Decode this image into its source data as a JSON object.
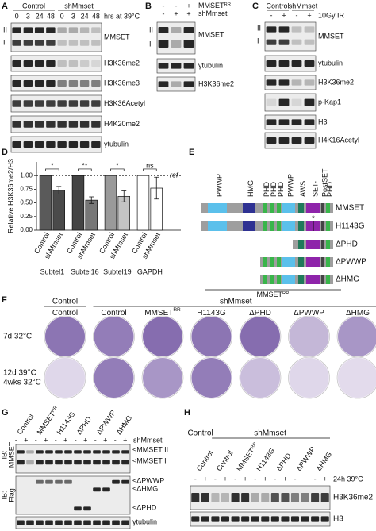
{
  "A": {
    "label": "A",
    "groups": [
      "Control",
      "shMmset"
    ],
    "lanes": [
      "0",
      "3",
      "24",
      "48",
      "0",
      "3",
      "24",
      "48"
    ],
    "condition": "hrs at 39°C",
    "forms": [
      "II",
      "I"
    ],
    "blots": [
      "MMSET",
      "H3K36me2",
      "H3K36me3",
      "H3K36Acetyl",
      "H4K20me2",
      "γtubulin"
    ]
  },
  "B": {
    "label": "B",
    "rows": [
      {
        "name": "MMSET",
        "sup": "RR",
        "signs": [
          "-",
          "-",
          "+"
        ]
      },
      {
        "name": "shMmset",
        "signs": [
          "-",
          "+",
          "+"
        ]
      }
    ],
    "forms": [
      "II",
      "I"
    ],
    "blots": [
      "MMSET",
      "γtubulin",
      "H3K36me2"
    ]
  },
  "C": {
    "label": "C",
    "groups": [
      "Control",
      "shMmset"
    ],
    "condition": "10Gy IR",
    "signs": [
      "-",
      "+",
      "-",
      "+"
    ],
    "forms": [
      "II",
      "I"
    ],
    "blots": [
      "MMSET",
      "γtubulin",
      "H3K36me2",
      "p-Kap1",
      "H3",
      "H4K16Acetyl"
    ]
  },
  "D": {
    "label": "D",
    "ylabel": "Relative H3K36me2/H3",
    "ref": "ref",
    "ref_value": 1,
    "ylim": [
      0,
      1.25
    ],
    "yticks": [
      {
        "value": 0,
        "label": "0.00"
      },
      {
        "value": 0.25,
        "label": "0.25"
      },
      {
        "value": 0.5,
        "label": "0.50"
      },
      {
        "value": 0.75,
        "label": "0.75"
      },
      {
        "value": 1,
        "label": "1.00"
      }
    ],
    "groups": [
      {
        "name": "Subtel1",
        "sig": "*",
        "bars": [
          {
            "name": "Control",
            "value": 1,
            "color": "#5a5a5a"
          },
          {
            "name": "shMmset",
            "value": 0.73,
            "error": 0.07,
            "color": "#4a4a4a"
          }
        ]
      },
      {
        "name": "Subtel16",
        "sig": "**",
        "bars": [
          {
            "name": "Control",
            "value": 1,
            "color": "#444444"
          },
          {
            "name": "shMmset",
            "value": 0.55,
            "error": 0.06,
            "color": "#777777"
          }
        ]
      },
      {
        "name": "Subtel19",
        "sig": "*",
        "bars": [
          {
            "name": "Control",
            "value": 1,
            "color": "#9a9a9a"
          },
          {
            "name": "shMmset",
            "value": 0.62,
            "error": 0.1,
            "color": "#c4c4c4"
          }
        ]
      },
      {
        "name": "GAPDH",
        "sig": "ns",
        "bars": [
          {
            "name": "Control",
            "value": 1,
            "color": "#ffffff"
          },
          {
            "name": "shMmset",
            "value": 0.77,
            "error": 0.2,
            "color": "#ffffff"
          }
        ]
      }
    ]
  },
  "E": {
    "label": "E",
    "domains": [
      "PWWP",
      "HMG",
      "PHD",
      "PHD",
      "PHD",
      "PWWP",
      "AWS",
      "SET-",
      "PostSET",
      "PHD"
    ],
    "mutation_mark": "*",
    "constructs": [
      "MMSET",
      "H1143G",
      "ΔPHD",
      "ΔPWWP",
      "ΔHMG"
    ],
    "footer": {
      "name": "MMSET",
      "sup": "RR"
    }
  },
  "F": {
    "label": "F",
    "groups": [
      "Control",
      "shMmset"
    ],
    "columns": [
      {
        "name": "Control"
      },
      {
        "name": "Control"
      },
      {
        "name": "MMSET",
        "sup": "RR"
      },
      {
        "name": "H1143G"
      },
      {
        "name": "ΔPHD"
      },
      {
        "name": "ΔPWWP"
      },
      {
        "name": "ΔHMG"
      }
    ],
    "rows": [
      [
        "7d 32°C"
      ],
      [
        "12d 39°C",
        "4wks 32°C"
      ]
    ]
  },
  "G": {
    "label": "G",
    "lanes": [
      {
        "name": "Control"
      },
      {
        "name": "MMSET",
        "sup": "RR"
      },
      {
        "name": "H1143G"
      },
      {
        "name": "ΔPHD"
      },
      {
        "name": "ΔPWWP"
      },
      {
        "name": "ΔHMG"
      }
    ],
    "signs": [
      "-",
      "+",
      "-",
      "+",
      "-",
      "+",
      "-",
      "+",
      "-",
      "+",
      "-",
      "+"
    ],
    "condition": "shMmset",
    "ib": [
      "IB:",
      "MMSET",
      "IB:",
      "Flag"
    ],
    "right": [
      "<MMSET II",
      "<MMSET I",
      "<ΔPWWP",
      "<ΔHMG",
      "<ΔPHD",
      "γtubulin"
    ]
  },
  "H": {
    "label": "H",
    "groups": [
      "Control",
      "shMmset"
    ],
    "lanes": [
      {
        "name": "Control"
      },
      {
        "name": "Control"
      },
      {
        "name": "MMSET",
        "sup": "RR"
      },
      {
        "name": "H1143G"
      },
      {
        "name": "ΔPHD"
      },
      {
        "name": "ΔPWWP"
      },
      {
        "name": "ΔHMG"
      }
    ],
    "signs": [
      "-",
      "+",
      "-",
      "+",
      "-",
      "+",
      "-",
      "+",
      "-",
      "+",
      "-",
      "+",
      "-",
      "+"
    ],
    "condition": "24h 39°C",
    "blots": [
      "H3K36me2",
      "H3"
    ]
  }
}
